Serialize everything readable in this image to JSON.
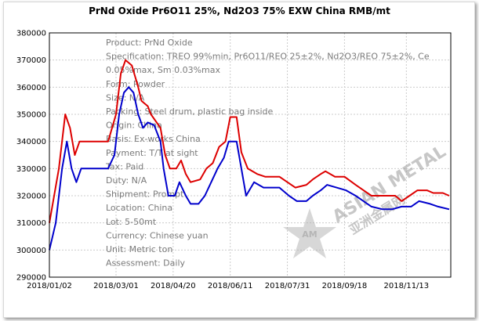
{
  "chart_data": {
    "type": "line",
    "title": "PrNd Oxide Pr6O11 25%, Nd2O3 75% EXW China RMB/mt",
    "ylim": [
      290000,
      380000
    ],
    "y_ticks": [
      "290000",
      "300000",
      "310000",
      "320000",
      "330000",
      "340000",
      "350000",
      "360000",
      "370000",
      "380000"
    ],
    "x_tick_labels": [
      "2018/01/02",
      "2018/03/01",
      "2018/04/20",
      "2018/06/11",
      "2018/07/31",
      "2018/09/18",
      "2018/11/13"
    ],
    "x_tick_index": [
      0,
      42,
      78,
      114,
      150,
      186,
      225
    ],
    "grid": true,
    "legend": "none",
    "series": [
      {
        "color": "#dd0000",
        "role": "high",
        "values": [
          [
            0,
            310000
          ],
          [
            6,
            330000
          ],
          [
            10,
            350000
          ],
          [
            13,
            345000
          ],
          [
            16,
            335000
          ],
          [
            19,
            340000
          ],
          [
            30,
            340000
          ],
          [
            37,
            340000
          ],
          [
            42,
            350000
          ],
          [
            45,
            365000
          ],
          [
            48,
            370000
          ],
          [
            52,
            368000
          ],
          [
            56,
            360000
          ],
          [
            58,
            355000
          ],
          [
            62,
            353000
          ],
          [
            64,
            350000
          ],
          [
            70,
            345000
          ],
          [
            73,
            335000
          ],
          [
            76,
            330000
          ],
          [
            80,
            330000
          ],
          [
            83,
            333000
          ],
          [
            86,
            328000
          ],
          [
            89,
            325000
          ],
          [
            95,
            326000
          ],
          [
            99,
            330000
          ],
          [
            103,
            332000
          ],
          [
            107,
            338000
          ],
          [
            111,
            340000
          ],
          [
            114,
            349000
          ],
          [
            118,
            349000
          ],
          [
            121,
            336000
          ],
          [
            125,
            330000
          ],
          [
            131,
            328000
          ],
          [
            136,
            327000
          ],
          [
            145,
            327000
          ],
          [
            150,
            325000
          ],
          [
            155,
            323000
          ],
          [
            162,
            324000
          ],
          [
            166,
            326000
          ],
          [
            171,
            328000
          ],
          [
            174,
            329000
          ],
          [
            180,
            327000
          ],
          [
            186,
            327000
          ],
          [
            193,
            324000
          ],
          [
            198,
            322000
          ],
          [
            203,
            320000
          ],
          [
            208,
            320000
          ],
          [
            213,
            320000
          ],
          [
            218,
            320000
          ],
          [
            222,
            318000
          ],
          [
            227,
            320000
          ],
          [
            232,
            322000
          ],
          [
            238,
            322000
          ],
          [
            242,
            321000
          ],
          [
            248,
            321000
          ],
          [
            252,
            320000
          ]
        ]
      },
      {
        "color": "#0000cc",
        "role": "low",
        "values": [
          [
            0,
            300000
          ],
          [
            4,
            310000
          ],
          [
            8,
            330000
          ],
          [
            11,
            340000
          ],
          [
            14,
            330000
          ],
          [
            17,
            325000
          ],
          [
            20,
            330000
          ],
          [
            30,
            330000
          ],
          [
            37,
            330000
          ],
          [
            41,
            335000
          ],
          [
            44,
            350000
          ],
          [
            47,
            358000
          ],
          [
            50,
            360000
          ],
          [
            53,
            358000
          ],
          [
            56,
            350000
          ],
          [
            59,
            345000
          ],
          [
            62,
            347000
          ],
          [
            66,
            346000
          ],
          [
            70,
            340000
          ],
          [
            72,
            330000
          ],
          [
            75,
            320000
          ],
          [
            79,
            320000
          ],
          [
            82,
            325000
          ],
          [
            86,
            320000
          ],
          [
            89,
            317000
          ],
          [
            94,
            317000
          ],
          [
            98,
            320000
          ],
          [
            102,
            325000
          ],
          [
            106,
            330000
          ],
          [
            110,
            334000
          ],
          [
            113,
            340000
          ],
          [
            118,
            340000
          ],
          [
            121,
            330000
          ],
          [
            124,
            320000
          ],
          [
            129,
            325000
          ],
          [
            135,
            323000
          ],
          [
            145,
            323000
          ],
          [
            151,
            320000
          ],
          [
            156,
            318000
          ],
          [
            162,
            318000
          ],
          [
            166,
            320000
          ],
          [
            171,
            322000
          ],
          [
            175,
            324000
          ],
          [
            181,
            323000
          ],
          [
            187,
            322000
          ],
          [
            193,
            320000
          ],
          [
            198,
            318000
          ],
          [
            203,
            316000
          ],
          [
            210,
            315000
          ],
          [
            216,
            315000
          ],
          [
            222,
            316000
          ],
          [
            228,
            316000
          ],
          [
            233,
            318000
          ],
          [
            240,
            317000
          ],
          [
            245,
            316000
          ],
          [
            252,
            315000
          ]
        ]
      }
    ],
    "spec_lines": [
      "Product: PrNd Oxide",
      "Specification: TREO 99%min, Pr6O11/REO 25±2%, Nd2O3/REO 75±2%, Ce",
      "0.05%max, Sm 0.03%max",
      "Form: Powder",
      "Size: N/A",
      "Packing: Steel drum, plastic bag inside",
      "Origin: China",
      "Basis: Ex-works China",
      "Payment: T/T at sight",
      "Tax: Paid",
      "Duty: N/A",
      "Shipment: Prompt",
      "Location: China",
      "Lot: 5-50mt",
      "Currency: Chinese yuan",
      "Unit: Metric ton",
      "Assessment: Daily"
    ]
  },
  "watermark": {
    "text_en": "ASIAN METAL",
    "text_cn": "亚洲金属网",
    "badge": "AM"
  }
}
